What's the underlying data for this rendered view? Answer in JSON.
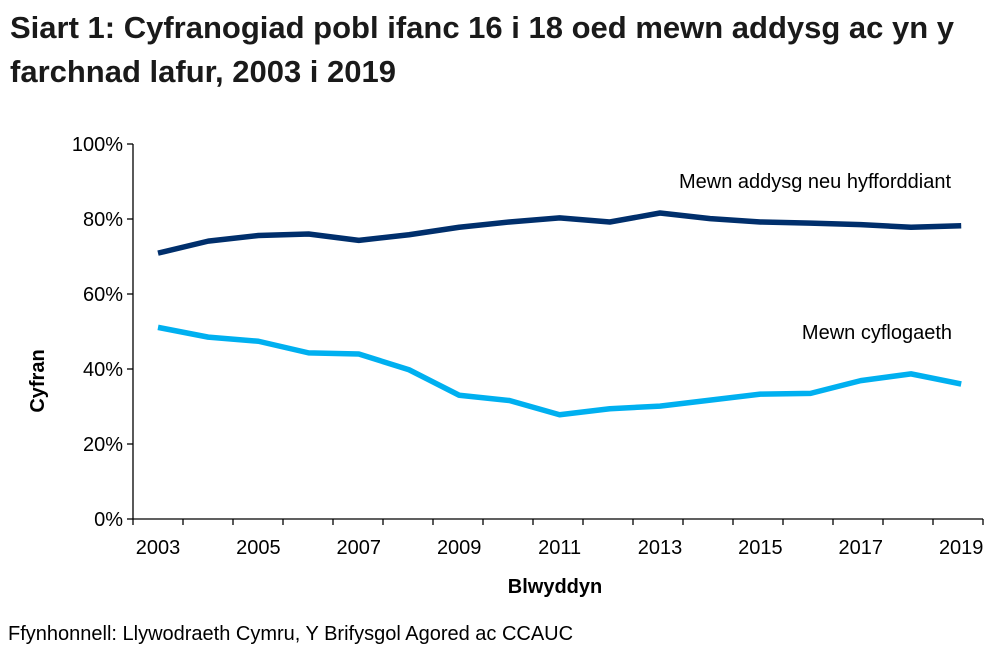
{
  "chart_data": {
    "type": "line",
    "title": "Siart 1: Cyfranogiad pobl ifanc 16 i 18 oed mewn addysg ac yn y farchnad lafur, 2003 i 2019",
    "xlabel": "Blwyddyn",
    "ylabel": "Cyfran",
    "ylim": [
      0,
      100
    ],
    "yticks": [
      "0%",
      "20%",
      "40%",
      "60%",
      "80%",
      "100%"
    ],
    "xtick_labels": [
      "2003",
      "2005",
      "2007",
      "2009",
      "2011",
      "2013",
      "2015",
      "2017",
      "2019"
    ],
    "x": [
      2003,
      2004,
      2005,
      2006,
      2007,
      2008,
      2009,
      2010,
      2011,
      2012,
      2013,
      2014,
      2015,
      2016,
      2017,
      2018,
      2019
    ],
    "grid": false,
    "series": [
      {
        "name": "Mewn addysg neu hyfforddiant",
        "color": "#002f6c",
        "values": [
          70.9,
          74.1,
          75.6,
          76.0,
          74.3,
          75.8,
          77.8,
          79.2,
          80.3,
          79.2,
          81.6,
          80.1,
          79.2,
          78.9,
          78.5,
          77.8,
          78.2
        ]
      },
      {
        "name": "Mewn cyflogaeth",
        "color": "#00b0f0",
        "values": [
          51.1,
          48.5,
          47.4,
          44.3,
          44.0,
          39.8,
          33.0,
          31.6,
          27.8,
          29.4,
          30.1,
          31.7,
          33.3,
          33.5,
          36.9,
          38.7,
          36.0
        ]
      }
    ]
  },
  "source": "Ffynhonnell: Llywodraeth Cymru, Y Brifysgol Agored ac CCAUC"
}
